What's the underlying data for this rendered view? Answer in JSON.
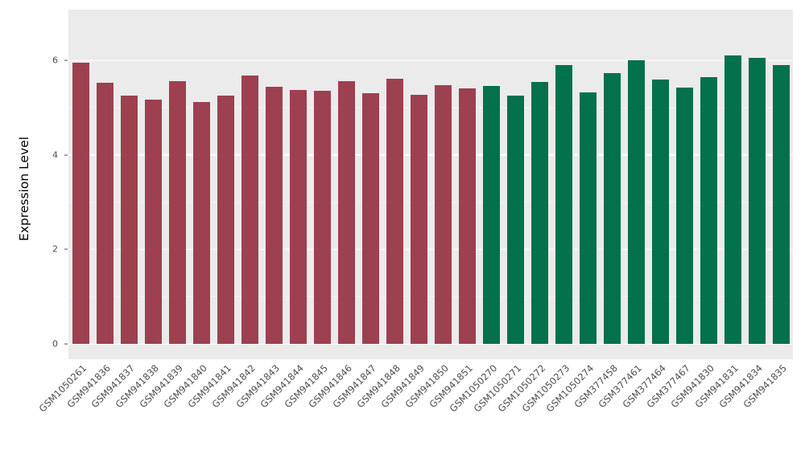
{
  "chart_data": {
    "type": "bar",
    "title": "",
    "xlabel": "",
    "ylabel": "Expression Level",
    "ylim": [
      0,
      6.45
    ],
    "yticks": [
      0,
      2,
      4,
      6
    ],
    "minor_gridlines": [
      1,
      3,
      5
    ],
    "grid": "on",
    "legend": "none",
    "panel_background": "#EBEBEB",
    "axis_text_color": "#4d4d4d",
    "palette": {
      "A": "#9D4050",
      "B": "#03714B"
    },
    "categories": [
      "GSM1050261",
      "GSM941836",
      "GSM941837",
      "GSM941838",
      "GSM941839",
      "GSM941840",
      "GSM941841",
      "GSM941842",
      "GSM941843",
      "GSM941844",
      "GSM941845",
      "GSM941846",
      "GSM941847",
      "GSM941848",
      "GSM941849",
      "GSM941850",
      "GSM941851",
      "GSM1050270",
      "GSM1050271",
      "GSM1050272",
      "GSM1050273",
      "GSM1050274",
      "GSM377458",
      "GSM377461",
      "GSM377464",
      "GSM377467",
      "GSM941830",
      "GSM941831",
      "GSM941834",
      "GSM941835"
    ],
    "values": [
      5.95,
      5.52,
      5.25,
      5.17,
      5.56,
      5.12,
      5.25,
      5.68,
      5.45,
      5.38,
      5.36,
      5.56,
      5.31,
      5.61,
      5.28,
      5.47,
      5.4,
      5.46,
      5.25,
      5.55,
      5.9,
      5.33,
      5.73,
      6.0,
      5.6,
      5.43,
      5.64,
      6.1,
      6.06,
      5.9
    ],
    "groups": [
      "A",
      "A",
      "A",
      "A",
      "A",
      "A",
      "A",
      "A",
      "A",
      "A",
      "A",
      "A",
      "A",
      "A",
      "A",
      "A",
      "A",
      "B",
      "B",
      "B",
      "B",
      "B",
      "B",
      "B",
      "B",
      "B",
      "B",
      "B",
      "B",
      "B"
    ]
  }
}
